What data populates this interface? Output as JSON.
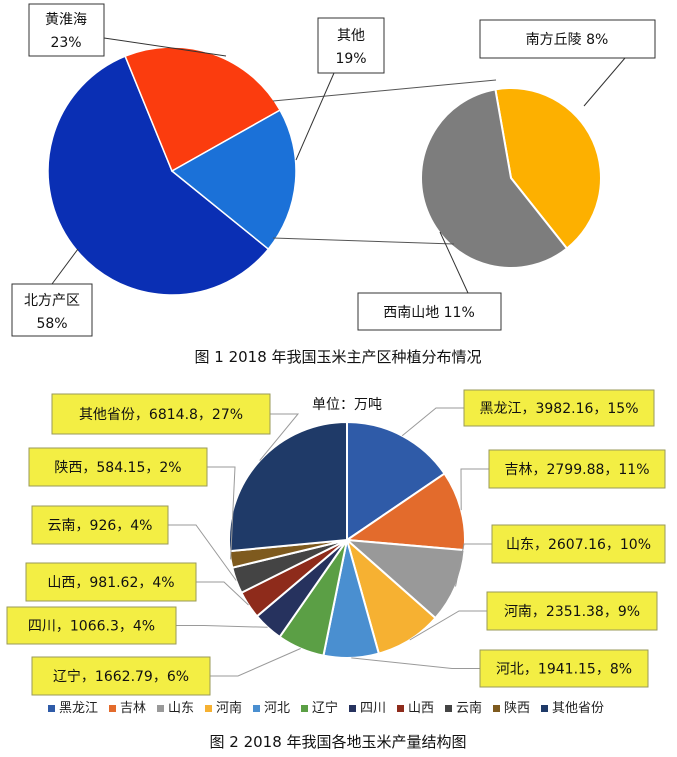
{
  "chart_data": [
    {
      "type": "pie",
      "caption": "图 1  2018 年我国玉米主产区种植分布情况",
      "slices": [
        {
          "name": "北方产区",
          "value": 58,
          "label_pct": "58%",
          "color": "#0a2fb4"
        },
        {
          "name": "黄淮海",
          "value": 23,
          "label_pct": "23%",
          "color": "#fb3c0e"
        },
        {
          "name": "其他",
          "value": 19,
          "label_pct": "19%",
          "color": "#1b71d8"
        }
      ],
      "breakout": {
        "of": "其他",
        "slices": [
          {
            "name": "南方丘陵",
            "value": 8,
            "label": "南方丘陵  8%",
            "color": "#fdb000"
          },
          {
            "name": "西南山地",
            "value": 11,
            "label": "西南山地  11%",
            "color": "#7d7d7d"
          }
        ]
      }
    },
    {
      "type": "pie",
      "caption": "图 2  2018 年我国各地玉米产量结构图",
      "subtitle": "单位：万吨",
      "slices": [
        {
          "name": "黑龙江",
          "value": 3982.16,
          "pct": 15,
          "label": "黑龙江，3982.16，15%",
          "color": "#2f5ba8"
        },
        {
          "name": "吉林",
          "value": 2799.88,
          "pct": 11,
          "label": "吉林，2799.88，11%",
          "color": "#e36b2c"
        },
        {
          "name": "山东",
          "value": 2607.16,
          "pct": 10,
          "label": "山东，2607.16，10%",
          "color": "#999999"
        },
        {
          "name": "河南",
          "value": 2351.38,
          "pct": 9,
          "label": "河南，2351.38，9%",
          "color": "#f6b132"
        },
        {
          "name": "河北",
          "value": 1941.15,
          "pct": 8,
          "label": "河北，1941.15，8%",
          "color": "#4a8fd0"
        },
        {
          "name": "辽宁",
          "value": 1662.79,
          "pct": 6,
          "label": "辽宁，1662.79，6%",
          "color": "#5b9f45"
        },
        {
          "name": "四川",
          "value": 1066.3,
          "pct": 4,
          "label": "四川，1066.3，4%",
          "color": "#26325e"
        },
        {
          "name": "山西",
          "value": 981.62,
          "pct": 4,
          "label": "山西，981.62，4%",
          "color": "#8e2b1b"
        },
        {
          "name": "云南",
          "value": 926,
          "pct": 4,
          "label": "云南，926，4%",
          "color": "#444444"
        },
        {
          "name": "陕西",
          "value": 584.15,
          "pct": 2,
          "label": "陕西，584.15，2%",
          "color": "#7e5a1e"
        },
        {
          "name": "其他省份",
          "value": 6814.8,
          "pct": 27,
          "label": "其他省份，6814.8，27%",
          "color": "#1f3a68"
        }
      ],
      "legend": {
        "position": "bottom"
      }
    }
  ]
}
